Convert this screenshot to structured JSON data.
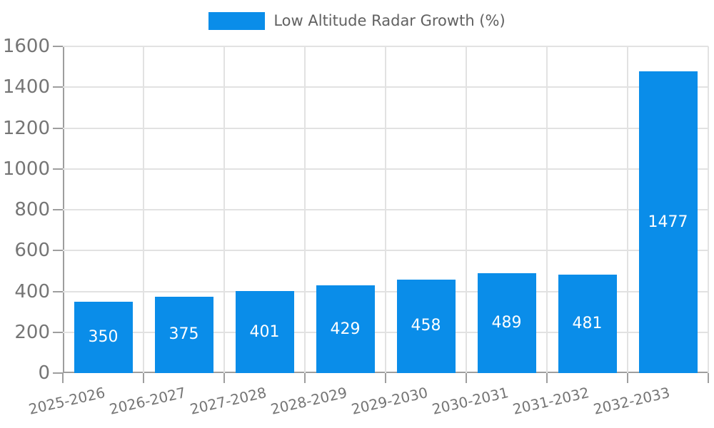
{
  "colors": {
    "bar": "#0a8de9",
    "axis_line": "#9e9e9e",
    "grid_line": "#e2e2e2",
    "tick_mark": "#9e9e9e",
    "tick_label": "#757575",
    "value_label": "#ffffff",
    "legend_text": "#616161",
    "background": "#ffffff"
  },
  "chart_data": {
    "type": "bar",
    "title": "",
    "legend": [
      "Low Altitude Radar Growth (%)"
    ],
    "legend_position": "top-center",
    "categories": [
      "2025-2026",
      "2026-2027",
      "2027-2028",
      "2028-2029",
      "2029-2030",
      "2030-2031",
      "2031-2032",
      "2032-2033"
    ],
    "values": [
      350,
      375,
      401,
      429,
      458,
      489,
      481,
      1477
    ],
    "bar_labels": [
      "350",
      "375",
      "401",
      "429",
      "458",
      "489",
      "481",
      "1477"
    ],
    "xlabel": "",
    "ylabel": "",
    "ylim": [
      0,
      1600
    ],
    "ytick_step": 200,
    "yticks": [
      0,
      200,
      400,
      600,
      800,
      1000,
      1200,
      1400,
      1600
    ],
    "grid": true,
    "bar_label_position": "inside-center"
  }
}
